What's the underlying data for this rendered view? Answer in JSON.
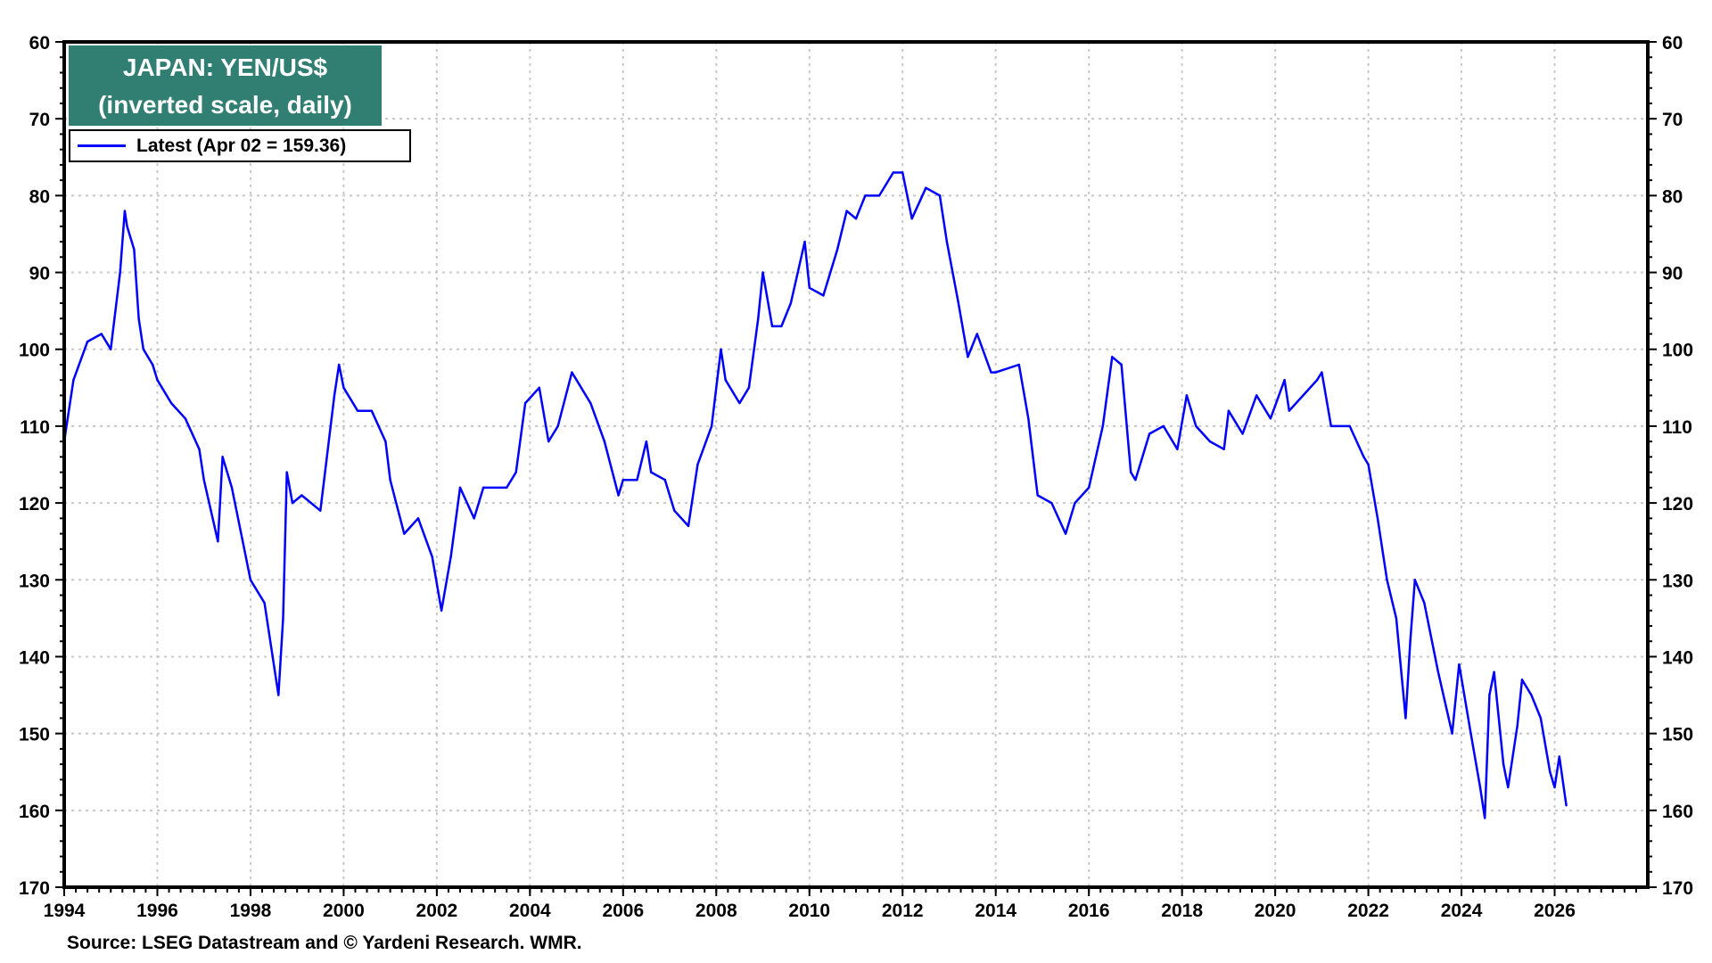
{
  "chart_data": {
    "type": "line",
    "title": "JAPAN: YEN/US$",
    "subtitle": "(inverted scale, daily)",
    "xlabel": "",
    "ylabel": "",
    "xlim": [
      1994,
      2028
    ],
    "ylim": [
      60,
      170
    ],
    "y_inverted": true,
    "grid": true,
    "legend_placement": "top-left",
    "x_ticks": [
      "1994",
      "1996",
      "1998",
      "2000",
      "2002",
      "2004",
      "2006",
      "2008",
      "2010",
      "2012",
      "2014",
      "2016",
      "2018",
      "2020",
      "2022",
      "2024",
      "2026"
    ],
    "y_ticks": [
      "60",
      "70",
      "80",
      "90",
      "100",
      "110",
      "120",
      "130",
      "140",
      "150",
      "160",
      "170"
    ],
    "series": [
      {
        "name": "Latest (Apr 02 = 159.36)",
        "color": "#0000ff",
        "x": [
          1994.0,
          1994.2,
          1994.5,
          1994.8,
          1995.0,
          1995.2,
          1995.3,
          1995.35,
          1995.5,
          1995.6,
          1995.7,
          1995.9,
          1996.0,
          1996.3,
          1996.6,
          1996.9,
          1997.0,
          1997.3,
          1997.4,
          1997.6,
          1997.9,
          1998.0,
          1998.3,
          1998.6,
          1998.7,
          1998.78,
          1998.9,
          1999.1,
          1999.5,
          1999.8,
          1999.9,
          2000.0,
          2000.3,
          2000.6,
          2000.9,
          2001.0,
          2001.3,
          2001.6,
          2001.9,
          2002.1,
          2002.3,
          2002.5,
          2002.8,
          2003.0,
          2003.5,
          2003.7,
          2003.9,
          2004.2,
          2004.4,
          2004.6,
          2004.9,
          2005.0,
          2005.3,
          2005.6,
          2005.9,
          2006.0,
          2006.3,
          2006.5,
          2006.6,
          2006.9,
          2007.1,
          2007.4,
          2007.6,
          2007.9,
          2008.1,
          2008.2,
          2008.5,
          2008.7,
          2008.9,
          2009.0,
          2009.2,
          2009.4,
          2009.6,
          2009.9,
          2010.0,
          2010.3,
          2010.6,
          2010.8,
          2011.0,
          2011.2,
          2011.5,
          2011.8,
          2012.0,
          2012.2,
          2012.5,
          2012.8,
          2012.95,
          2013.2,
          2013.4,
          2013.6,
          2013.9,
          2014.0,
          2014.5,
          2014.7,
          2014.9,
          2015.2,
          2015.5,
          2015.7,
          2016.0,
          2016.3,
          2016.5,
          2016.7,
          2016.9,
          2017.0,
          2017.3,
          2017.6,
          2017.9,
          2018.1,
          2018.3,
          2018.6,
          2018.9,
          2019.0,
          2019.3,
          2019.6,
          2019.9,
          2020.2,
          2020.3,
          2020.6,
          2020.9,
          2021.0,
          2021.2,
          2021.6,
          2021.9,
          2022.0,
          2022.2,
          2022.4,
          2022.6,
          2022.8,
          2022.9,
          2023.0,
          2023.2,
          2023.5,
          2023.8,
          2023.95,
          2024.2,
          2024.4,
          2024.5,
          2024.6,
          2024.7,
          2024.9,
          2025.0,
          2025.2,
          2025.3,
          2025.5,
          2025.7,
          2025.9,
          2026.0,
          2026.1,
          2026.25
        ],
        "values": [
          112,
          104,
          99,
          98,
          100,
          90,
          82,
          84,
          87,
          96,
          100,
          102,
          104,
          107,
          109,
          113,
          117,
          125,
          114,
          118,
          127,
          130,
          133,
          145,
          135,
          116,
          120,
          119,
          121,
          106,
          102,
          105,
          108,
          108,
          112,
          117,
          124,
          122,
          127,
          134,
          127,
          118,
          122,
          118,
          118,
          116,
          107,
          105,
          112,
          110,
          103,
          104,
          107,
          112,
          119,
          117,
          117,
          112,
          116,
          117,
          121,
          123,
          115,
          110,
          100,
          104,
          107,
          105,
          96,
          90,
          97,
          97,
          94,
          86,
          92,
          93,
          87,
          82,
          83,
          80,
          80,
          77,
          77,
          83,
          79,
          80,
          86,
          94,
          101,
          98,
          103,
          103,
          102,
          109,
          119,
          120,
          124,
          120,
          118,
          110,
          101,
          102,
          116,
          117,
          111,
          110,
          113,
          106,
          110,
          112,
          113,
          108,
          111,
          106,
          109,
          104,
          108,
          106,
          104,
          103,
          110,
          110,
          114,
          115,
          122,
          130,
          135,
          148,
          138,
          130,
          133,
          142,
          150,
          141,
          150,
          157,
          161,
          145,
          142,
          154,
          157,
          149,
          143,
          145,
          148,
          155,
          157,
          153,
          159.36
        ]
      }
    ]
  },
  "title_line1": "JAPAN: YEN/US$",
  "title_line2": "(inverted scale, daily)",
  "legend_label": "Latest (Apr 02 = 159.36)",
  "source": "Source: LSEG Datastream and © Yardeni Research. WMR."
}
